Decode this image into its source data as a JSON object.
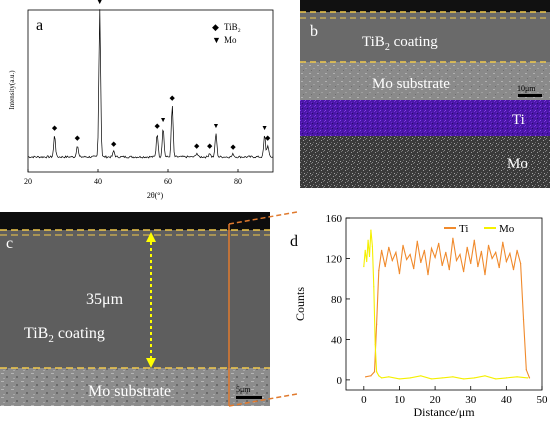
{
  "panel_a": {
    "letter": "a",
    "ylabel": "Intensity(a.u.)",
    "xlabel": "2θ(°)",
    "legend": [
      {
        "marker": "◆",
        "label": "TiB₂"
      },
      {
        "marker": "▼",
        "label": "Mo"
      }
    ],
    "markers": [
      {
        "two_theta": 27.6,
        "phase": "TiB2"
      },
      {
        "two_theta": 34.1,
        "phase": "TiB2"
      },
      {
        "two_theta": 40.5,
        "phase": "Mo"
      },
      {
        "two_theta": 44.5,
        "phase": "TiB2"
      },
      {
        "two_theta": 56.9,
        "phase": "TiB2"
      },
      {
        "two_theta": 58.6,
        "phase": "Mo"
      },
      {
        "two_theta": 61.2,
        "phase": "TiB2"
      },
      {
        "two_theta": 68.2,
        "phase": "TiB2"
      },
      {
        "two_theta": 71.9,
        "phase": "TiB2"
      },
      {
        "two_theta": 73.7,
        "phase": "Mo"
      },
      {
        "two_theta": 78.6,
        "phase": "TiB2"
      },
      {
        "two_theta": 87.6,
        "phase": "Mo"
      },
      {
        "two_theta": 88.5,
        "phase": "TiB2"
      }
    ]
  },
  "panel_b": {
    "letter": "b",
    "coating_label_main": "TiB",
    "coating_label_sub": "2",
    "coating_label_rest": " coating",
    "substrate_label": "Mo substrate",
    "scale_bar": "10μm",
    "map_ti_label": "Ti",
    "map_mo_label": "Mo",
    "colors": {
      "ti_map": "#5a1fb8",
      "coating": "#6e6e6e",
      "dash": "#f2c94c"
    }
  },
  "panel_c": {
    "letter": "c",
    "thickness": "35μm",
    "coating_label_main": "TiB",
    "coating_label_sub": "2",
    "coating_label_rest": " coating",
    "substrate_label": "Mo substrate",
    "scale_bar": "5μm",
    "colors": {
      "arrow": "#ffff00",
      "linescan": "#e07a2e"
    }
  },
  "chart_data": {
    "type": "line",
    "letter": "d",
    "xlabel": "Distance/μm",
    "ylabel": "Counts",
    "xlim": [
      -5,
      50
    ],
    "ylim": [
      -10,
      160
    ],
    "x_ticks": [
      "0",
      "10",
      "20",
      "30",
      "40",
      "50"
    ],
    "y_ticks": [
      "0",
      "40",
      "80",
      "120",
      "160"
    ],
    "legend": [
      "Ti",
      "Mo"
    ],
    "legend_position": "top-right",
    "grid": false,
    "series": [
      {
        "name": "Ti",
        "color": "#f08a2c",
        "x": [
          0.5,
          2,
          3,
          3.6,
          4.2,
          5,
          6,
          7,
          8,
          9,
          10,
          11,
          12,
          13,
          14,
          15,
          16,
          17,
          18,
          19,
          20,
          21,
          22,
          23,
          24,
          25,
          26,
          27,
          28,
          29,
          30,
          31,
          32,
          33,
          34,
          35,
          36,
          37,
          38,
          39,
          40,
          41,
          42,
          43,
          44,
          44.8,
          45.6,
          46.5
        ],
        "y": [
          3,
          4,
          8,
          55,
          108,
          128,
          112,
          131,
          118,
          126,
          105,
          133,
          119,
          124,
          110,
          137,
          116,
          128,
          104,
          130,
          121,
          135,
          113,
          126,
          109,
          140,
          118,
          124,
          107,
          131,
          115,
          138,
          112,
          127,
          104,
          133,
          120,
          126,
          111,
          136,
          117,
          125,
          109,
          128,
          115,
          60,
          10,
          2
        ]
      },
      {
        "name": "Mo",
        "color": "#f5f000",
        "x": [
          0,
          0.4,
          0.8,
          1.2,
          1.6,
          2,
          2.4,
          2.8,
          3.2,
          3.6,
          4.2,
          5,
          7,
          10,
          13,
          16,
          19,
          22,
          25,
          28,
          31,
          34,
          37,
          40,
          43,
          46
        ],
        "y": [
          112,
          128,
          117,
          138,
          122,
          148,
          132,
          92,
          35,
          8,
          4,
          2,
          3,
          1,
          2,
          4,
          1,
          2,
          3,
          1,
          2,
          4,
          1,
          2,
          3,
          2
        ]
      }
    ]
  }
}
